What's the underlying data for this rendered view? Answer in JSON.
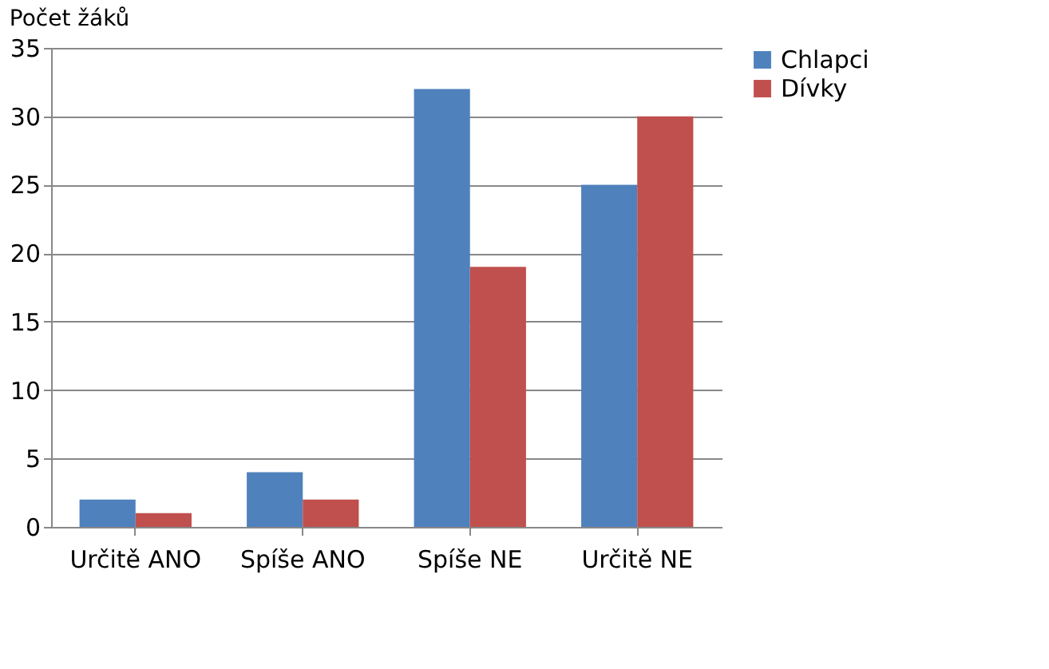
{
  "chart_data": {
    "type": "bar",
    "title": "Počet žáků",
    "categories": [
      "Určitě ANO",
      "Spíše ANO",
      "Spíše NE",
      "Určitě NE"
    ],
    "series": [
      {
        "name": "Chlapci",
        "color": "#4f81bd",
        "values": [
          2,
          4,
          32,
          25
        ]
      },
      {
        "name": "Dívky",
        "color": "#c0504d",
        "values": [
          1,
          2,
          19,
          30
        ]
      }
    ],
    "ylim": [
      0,
      35
    ],
    "yticks": [
      0,
      5,
      10,
      15,
      20,
      25,
      30,
      35
    ],
    "grid": "y",
    "legend": "right"
  }
}
